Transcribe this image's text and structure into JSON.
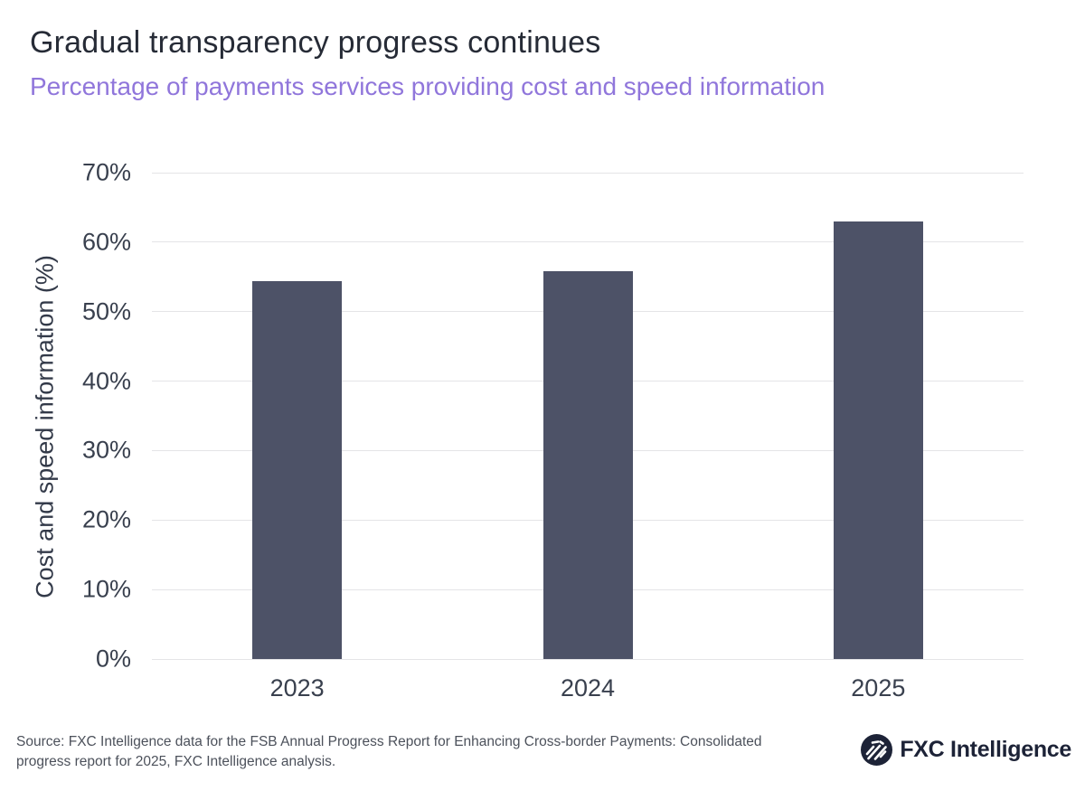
{
  "header": {
    "title": "Gradual transparency progress continues",
    "subtitle": "Percentage of payments services providing cost and speed information"
  },
  "chart_data": {
    "type": "bar",
    "categories": [
      "2023",
      "2024",
      "2025"
    ],
    "values": [
      54.4,
      55.8,
      63.0
    ],
    "title": "Gradual transparency progress continues",
    "subtitle": "Percentage of payments services providing cost and speed information",
    "xlabel": "",
    "ylabel": "Cost and speed information (%)",
    "ylim": [
      0,
      70
    ],
    "ytick_step": 10,
    "ytick_suffix": "%",
    "grid": true,
    "legend": "none",
    "bar_color": "#4d5267"
  },
  "footer": {
    "source_lines": [
      "Source: FXC Intelligence data for the FSB Annual Progress Report for Enhancing Cross-border Payments: Consolidated",
      "progress report for 2025, FXC Intelligence analysis."
    ],
    "logo_text": "FXC Intelligence"
  },
  "colors": {
    "title": "#262b36",
    "subtitle": "#9076db",
    "bar": "#4d5267",
    "axis_text": "#39404e",
    "gridline": "#e4e4e7",
    "source_text": "#4c515b",
    "logo_navy": "#1d2337"
  }
}
